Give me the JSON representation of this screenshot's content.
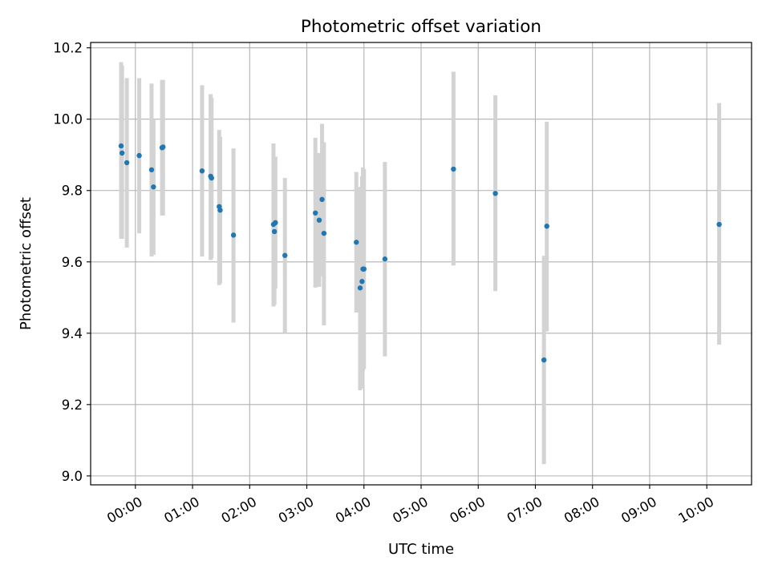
{
  "chart_data": {
    "type": "scatter",
    "title": "Photometric offset variation",
    "xlabel": "UTC time",
    "ylabel": "Photometric offset",
    "x_unit": "hours UTC",
    "xlim": [
      "-00:47",
      "10:47"
    ],
    "ylim": [
      8.975,
      10.215
    ],
    "x_ticks": [
      "00:00",
      "01:00",
      "02:00",
      "03:00",
      "04:00",
      "05:00",
      "06:00",
      "07:00",
      "08:00",
      "09:00",
      "10:00"
    ],
    "y_ticks": [
      "9.0",
      "9.2",
      "9.4",
      "9.6",
      "9.8",
      "10.0",
      "10.2"
    ],
    "grid": true,
    "errorbar_color": "#d3d3d3",
    "marker_color": "#1f77b4",
    "points": [
      {
        "x": "23:45",
        "y": 9.925,
        "err_low": 9.665,
        "err_high": 10.16
      },
      {
        "x": "23:46",
        "y": 9.905,
        "err_low": 9.665,
        "err_high": 10.15
      },
      {
        "x": "23:51",
        "y": 9.878,
        "err_low": 9.64,
        "err_high": 10.115
      },
      {
        "x": "00:04",
        "y": 9.898,
        "err_low": 9.68,
        "err_high": 10.115
      },
      {
        "x": "00:17",
        "y": 9.858,
        "err_low": 9.615,
        "err_high": 10.1
      },
      {
        "x": "00:19",
        "y": 9.81,
        "err_low": 9.62,
        "err_high": 10.0
      },
      {
        "x": "00:28",
        "y": 9.92,
        "err_low": 9.73,
        "err_high": 10.11
      },
      {
        "x": "00:29",
        "y": 9.922,
        "err_low": 9.73,
        "err_high": 10.11
      },
      {
        "x": "01:10",
        "y": 9.855,
        "err_low": 9.615,
        "err_high": 10.095
      },
      {
        "x": "01:19",
        "y": 9.84,
        "err_low": 9.605,
        "err_high": 10.07
      },
      {
        "x": "01:20",
        "y": 9.835,
        "err_low": 9.61,
        "err_high": 10.06
      },
      {
        "x": "01:28",
        "y": 9.755,
        "err_low": 9.535,
        "err_high": 9.97
      },
      {
        "x": "01:29",
        "y": 9.745,
        "err_low": 9.54,
        "err_high": 9.95
      },
      {
        "x": "01:43",
        "y": 9.675,
        "err_low": 9.43,
        "err_high": 9.918
      },
      {
        "x": "02:25",
        "y": 9.705,
        "err_low": 9.475,
        "err_high": 9.932
      },
      {
        "x": "02:26",
        "y": 9.685,
        "err_low": 9.48,
        "err_high": 9.89
      },
      {
        "x": "02:27",
        "y": 9.71,
        "err_low": 9.525,
        "err_high": 9.895
      },
      {
        "x": "02:37",
        "y": 9.618,
        "err_low": 9.4,
        "err_high": 9.835
      },
      {
        "x": "03:09",
        "y": 9.737,
        "err_low": 9.528,
        "err_high": 9.948
      },
      {
        "x": "03:13",
        "y": 9.717,
        "err_low": 9.53,
        "err_high": 9.905
      },
      {
        "x": "03:16",
        "y": 9.775,
        "err_low": 9.56,
        "err_high": 9.987
      },
      {
        "x": "03:18",
        "y": 9.68,
        "err_low": 9.422,
        "err_high": 9.935
      },
      {
        "x": "03:52",
        "y": 9.655,
        "err_low": 9.458,
        "err_high": 9.852
      },
      {
        "x": "03:56",
        "y": 9.527,
        "err_low": 9.24,
        "err_high": 9.81
      },
      {
        "x": "03:58",
        "y": 9.545,
        "err_low": 9.245,
        "err_high": 9.84
      },
      {
        "x": "03:59",
        "y": 9.58,
        "err_low": 9.295,
        "err_high": 9.865
      },
      {
        "x": "04:00",
        "y": 9.58,
        "err_low": 9.3,
        "err_high": 9.86
      },
      {
        "x": "04:22",
        "y": 9.608,
        "err_low": 9.335,
        "err_high": 9.88
      },
      {
        "x": "05:34",
        "y": 9.86,
        "err_low": 9.59,
        "err_high": 10.133
      },
      {
        "x": "06:18",
        "y": 9.792,
        "err_low": 9.518,
        "err_high": 10.067
      },
      {
        "x": "07:09",
        "y": 9.325,
        "err_low": 9.033,
        "err_high": 9.617
      },
      {
        "x": "07:12",
        "y": 9.7,
        "err_low": 9.405,
        "err_high": 9.993
      },
      {
        "x": "10:13",
        "y": 9.705,
        "err_low": 9.368,
        "err_high": 10.045
      }
    ]
  }
}
